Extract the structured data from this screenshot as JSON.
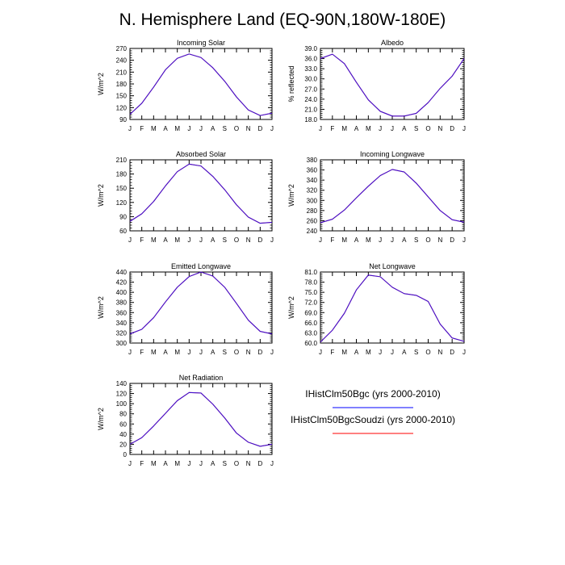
{
  "title": "N. Hemisphere Land (EQ-90N,180W-180E)",
  "months": [
    "J",
    "F",
    "M",
    "A",
    "M",
    "J",
    "J",
    "A",
    "S",
    "O",
    "N",
    "D",
    "J"
  ],
  "legend": [
    {
      "label": "IHistClm50Bgc (yrs 2000-2010)",
      "color": "#0000ff"
    },
    {
      "label": "IHistClm50BgcSoudzi (yrs 2000-2010)",
      "color": "#ff0000"
    }
  ],
  "chart_data": [
    {
      "type": "line",
      "title": "Incoming Solar",
      "ylabel": "W/m^2",
      "ylim": [
        90,
        270
      ],
      "yticks": [
        "90",
        "120",
        "150",
        "180",
        "210",
        "240",
        "270"
      ],
      "series": [
        {
          "color": "#0000ff",
          "values": [
            103,
            131,
            172,
            216,
            245,
            256,
            247,
            221,
            187,
            147,
            114,
            100,
            106
          ]
        },
        {
          "color": "#ff0000",
          "values": [
            103,
            131,
            172,
            216,
            245,
            256,
            247,
            221,
            187,
            147,
            114,
            100,
            106
          ]
        }
      ]
    },
    {
      "type": "line",
      "title": "Albedo",
      "ylabel": "% reflected",
      "ylim": [
        18,
        39
      ],
      "yticks": [
        "18.0",
        "21.0",
        "24.0",
        "27.0",
        "30.0",
        "33.0",
        "36.0",
        "39.0"
      ],
      "series": [
        {
          "color": "#0000ff",
          "values": [
            36.0,
            37.3,
            34.5,
            29.0,
            23.8,
            20.4,
            19.0,
            19.0,
            19.8,
            23.0,
            27.2,
            30.8,
            36.0
          ]
        },
        {
          "color": "#ff0000",
          "values": [
            36.0,
            37.3,
            34.5,
            29.0,
            23.8,
            20.4,
            19.0,
            19.0,
            19.8,
            23.0,
            27.2,
            30.8,
            36.0
          ]
        }
      ]
    },
    {
      "type": "line",
      "title": "Absorbed Solar",
      "ylabel": "W/m^2",
      "ylim": [
        60,
        210
      ],
      "yticks": [
        "60",
        "90",
        "120",
        "150",
        "180",
        "210"
      ],
      "series": [
        {
          "color": "#0000ff",
          "values": [
            80,
            96,
            122,
            155,
            185,
            201,
            197,
            175,
            147,
            115,
            89,
            76,
            78
          ]
        },
        {
          "color": "#ff0000",
          "values": [
            80,
            96,
            122,
            155,
            185,
            201,
            197,
            175,
            147,
            115,
            89,
            76,
            78
          ]
        }
      ]
    },
    {
      "type": "line",
      "title": "Incoming Longwave",
      "ylabel": "W/m^2",
      "ylim": [
        240,
        380
      ],
      "yticks": [
        "240",
        "260",
        "280",
        "300",
        "320",
        "340",
        "360",
        "380"
      ],
      "series": [
        {
          "color": "#0000ff",
          "values": [
            256,
            263,
            281,
            305,
            328,
            349,
            361,
            356,
            334,
            307,
            280,
            262,
            257
          ]
        },
        {
          "color": "#ff0000",
          "values": [
            256,
            263,
            281,
            305,
            328,
            349,
            361,
            356,
            334,
            307,
            280,
            262,
            257
          ]
        }
      ]
    },
    {
      "type": "line",
      "title": "Emitted Longwave",
      "ylabel": "W/m^2",
      "ylim": [
        300,
        440
      ],
      "yticks": [
        "300",
        "320",
        "340",
        "360",
        "380",
        "400",
        "420",
        "440"
      ],
      "series": [
        {
          "color": "#0000ff",
          "values": [
            318,
            327,
            350,
            381,
            410,
            431,
            440,
            432,
            410,
            378,
            345,
            323,
            318
          ]
        },
        {
          "color": "#ff0000",
          "values": [
            318,
            327,
            350,
            381,
            410,
            431,
            440,
            432,
            410,
            378,
            345,
            323,
            318
          ]
        }
      ]
    },
    {
      "type": "line",
      "title": "Net Longwave",
      "ylabel": "W/m^2",
      "ylim": [
        60,
        81
      ],
      "yticks": [
        "60.0",
        "63.0",
        "66.0",
        "69.0",
        "72.0",
        "75.0",
        "78.0",
        "81.0"
      ],
      "series": [
        {
          "color": "#0000ff",
          "values": [
            60.3,
            63.8,
            68.8,
            75.7,
            80.1,
            79.6,
            76.5,
            74.6,
            74.1,
            72.3,
            65.6,
            61.5,
            60.5
          ]
        },
        {
          "color": "#ff0000",
          "values": [
            60.3,
            63.8,
            68.8,
            75.7,
            80.1,
            79.6,
            76.5,
            74.6,
            74.1,
            72.3,
            65.6,
            61.5,
            60.5
          ]
        }
      ]
    },
    {
      "type": "line",
      "title": "Net Radiation",
      "ylabel": "W/m^2",
      "ylim": [
        0,
        140
      ],
      "yticks": [
        "0",
        "20",
        "40",
        "60",
        "80",
        "100",
        "120",
        "140"
      ],
      "series": [
        {
          "color": "#0000ff",
          "values": [
            20,
            33,
            56,
            81,
            106,
            122,
            121,
            99,
            72,
            42,
            24,
            16,
            20
          ]
        },
        {
          "color": "#ff0000",
          "values": [
            20,
            33,
            56,
            81,
            106,
            122,
            121,
            99,
            72,
            42,
            24,
            16,
            20
          ]
        }
      ]
    }
  ]
}
